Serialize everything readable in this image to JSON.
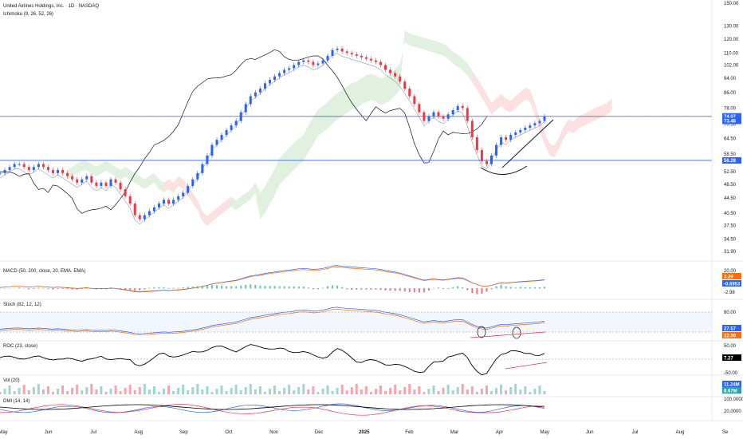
{
  "header": {
    "title": "United Airlines Holdings, Inc. · 1D · NASDAQ",
    "indicator": "Ichimoku (9, 26, 52, 26)"
  },
  "panes": {
    "macd": "MACD (50, 200, close, 20, EMA, EMA)",
    "stoch": "Stoch (82, 12, 12)",
    "roc": "ROC (23, close)",
    "vol": "Vol (20)",
    "dmi": "DMI (14, 14)"
  },
  "chart_data": {
    "type": "candlestick",
    "price_axis": {
      "ticks": [
        150,
        130,
        120,
        110,
        102,
        94,
        86,
        78,
        70.5,
        64.5,
        58.5,
        52.5,
        48.5,
        44.5,
        40.5,
        37.5,
        34.5,
        31.9
      ],
      "labels": [
        "150.00",
        "130.00",
        "120.00",
        "110.00",
        "102.00",
        "94.00",
        "86.00",
        "78.00",
        "70.50",
        "64.50",
        "58.50",
        "52.50",
        "48.50",
        "44.50",
        "40.50",
        "37.50",
        "34.50",
        "31.90"
      ],
      "scale": "log"
    },
    "x_axis": {
      "labels": [
        "May",
        "Jun",
        "Jul",
        "Aug",
        "Sep",
        "Oct",
        "Nov",
        "Dec",
        "2025",
        "Feb",
        "Mar",
        "Apr",
        "May",
        "Jun",
        "Jul",
        "Aug",
        "Se"
      ],
      "bold": "2025"
    },
    "price_labels": [
      {
        "value": 74.07,
        "label": "74.07",
        "color": "#2962ff"
      },
      {
        "value": 73.46,
        "label": "73.46",
        "color": "#2962ff"
      },
      {
        "value": 56.28,
        "label": "56.28",
        "color": "#2962ff"
      }
    ],
    "horizontal_lines": [
      74.07,
      56.28
    ],
    "price_series": [
      52,
      53,
      54,
      55,
      55,
      54,
      53,
      54,
      55,
      54,
      53,
      52,
      53,
      52,
      51,
      50,
      49,
      50,
      51,
      49,
      48,
      49,
      48,
      50,
      49,
      47,
      45,
      43,
      40,
      39,
      40,
      41,
      42,
      43,
      44,
      43,
      44,
      45,
      46,
      48,
      50,
      52,
      55,
      58,
      62,
      64,
      66,
      68,
      70,
      72,
      76,
      80,
      84,
      86,
      88,
      91,
      93,
      95,
      97,
      99,
      100,
      102,
      104,
      105,
      104,
      102,
      103,
      105,
      108,
      112,
      113,
      111,
      110,
      109,
      108,
      107,
      106,
      105,
      104,
      102,
      99,
      97,
      95,
      92,
      88,
      84,
      80,
      76,
      72,
      74,
      76,
      74,
      73,
      75,
      77,
      79,
      78,
      72,
      65,
      60,
      56,
      55,
      58,
      62,
      65,
      64,
      66,
      67,
      68,
      69,
      70,
      71,
      72,
      74
    ],
    "macd": {
      "ticks": [
        20.0,
        -20.0
      ],
      "labels": [
        "20.00"
      ],
      "badges": [
        "3.29",
        "-0.6953",
        "-2.98"
      ]
    },
    "stoch": {
      "ticks": [
        80.0
      ],
      "labels": [
        "80.00"
      ],
      "badges": [
        "27.57",
        "22.00"
      ]
    },
    "roc": {
      "ticks": [
        50.0,
        -50.0
      ],
      "labels": [
        "50.00",
        "-50.00"
      ],
      "badges": [
        "7.27"
      ]
    },
    "vol": {
      "badges": [
        "11.24M",
        "8.67M"
      ]
    },
    "dmi": {
      "ticks": [
        100.0,
        20.0
      ],
      "labels": [
        "100.0000",
        "20.0000"
      ]
    }
  }
}
